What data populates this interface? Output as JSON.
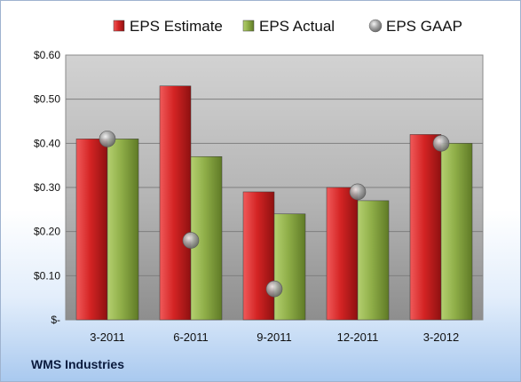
{
  "company": "WMS Industries",
  "chart_data": {
    "type": "bar",
    "categories": [
      "3-2011",
      "6-2011",
      "9-2011",
      "12-2011",
      "3-2012"
    ],
    "series": [
      {
        "name": "EPS Estimate",
        "kind": "bar",
        "color": "#d42a2a",
        "values": [
          0.41,
          0.53,
          0.29,
          0.3,
          0.42
        ]
      },
      {
        "name": "EPS Actual",
        "kind": "bar",
        "color": "#8fae48",
        "values": [
          0.41,
          0.37,
          0.24,
          0.27,
          0.4
        ]
      },
      {
        "name": "EPS GAAP",
        "kind": "marker",
        "color": "#9a9a9a",
        "values": [
          0.41,
          0.18,
          0.07,
          0.29,
          0.4
        ]
      }
    ],
    "yticks": [
      {
        "value": 0,
        "label": "$-"
      },
      {
        "value": 0.1,
        "label": "$0.10"
      },
      {
        "value": 0.2,
        "label": "$0.20"
      },
      {
        "value": 0.3,
        "label": "$0.30"
      },
      {
        "value": 0.4,
        "label": "$0.40"
      },
      {
        "value": 0.5,
        "label": "$0.50"
      },
      {
        "value": 0.6,
        "label": "$0.60"
      }
    ],
    "ylim": [
      0,
      0.6
    ],
    "grid": true,
    "legend": "top"
  }
}
